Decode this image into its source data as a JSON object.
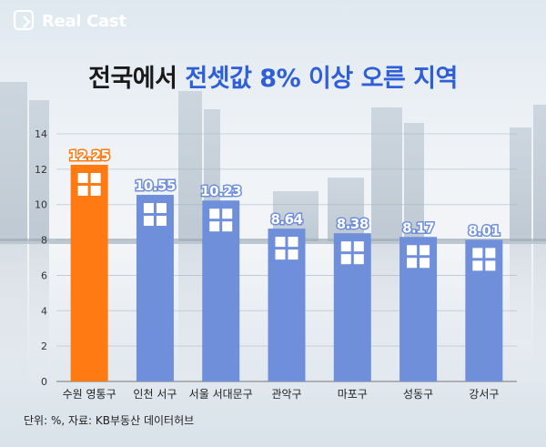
{
  "brand": {
    "logo_text": "Real Cast",
    "logo_icon": "document-icon"
  },
  "title": {
    "part1": "전국에서",
    "part2": "전셋값 8% 이상 오른 지역"
  },
  "source": "단위: %, 자료: KB부동산 데이터허브",
  "colors": {
    "highlight_bar": "#ff7a12",
    "bar": "#6f8fdb",
    "title_accent": "#2f5fd8"
  },
  "chart_data": {
    "type": "bar",
    "categories": [
      "수원 영통구",
      "인천 서구",
      "서울 서대문구",
      "관악구",
      "마포구",
      "성동구",
      "강서구"
    ],
    "values": [
      12.25,
      10.55,
      10.23,
      8.64,
      8.38,
      8.17,
      8.01
    ],
    "value_labels": [
      "12.25",
      "10.55",
      "10.23",
      "8.64",
      "8.38",
      "8.17",
      "8.01"
    ],
    "highlight_index": 0,
    "ylim": [
      0,
      14
    ],
    "yticks": [
      0,
      2,
      4,
      6,
      8,
      10,
      12,
      14
    ],
    "grid": true,
    "legend": "none"
  }
}
